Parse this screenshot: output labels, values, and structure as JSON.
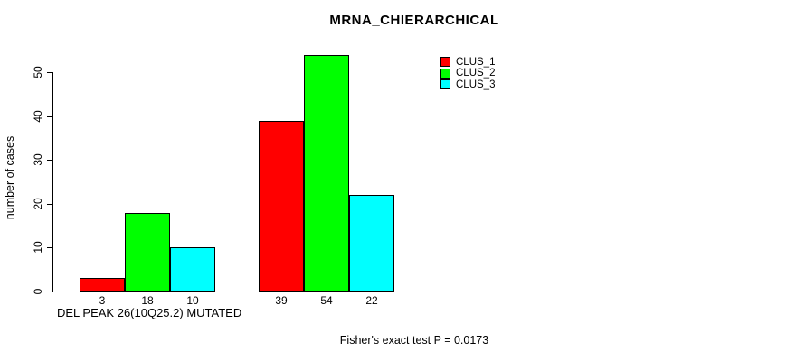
{
  "chart_data": {
    "type": "bar",
    "title": "MRNA_CHIERARCHICAL",
    "ylabel": "number of cases",
    "categories": [
      "DEL PEAK 26(10Q25.2) MUTATED",
      ""
    ],
    "series": [
      {
        "name": "CLUS_1",
        "color": "#ff0000",
        "values": [
          3,
          39
        ]
      },
      {
        "name": "CLUS_2",
        "color": "#00ff00",
        "values": [
          18,
          54
        ]
      },
      {
        "name": "CLUS_3",
        "color": "#00ffff",
        "values": [
          10,
          22
        ]
      }
    ],
    "yticks": [
      0,
      10,
      20,
      30,
      40,
      50
    ],
    "ylim": [
      0,
      54
    ],
    "bar_value_labels_shown": true,
    "legend": {
      "position": "top-right",
      "entries": [
        "CLUS_1",
        "CLUS_2",
        "CLUS_3"
      ]
    },
    "annotation": "Fisher's exact test P = 0.0173",
    "grid": false,
    "background": "#ffffff",
    "axis_color": "#000000",
    "text_color": "#000000"
  }
}
